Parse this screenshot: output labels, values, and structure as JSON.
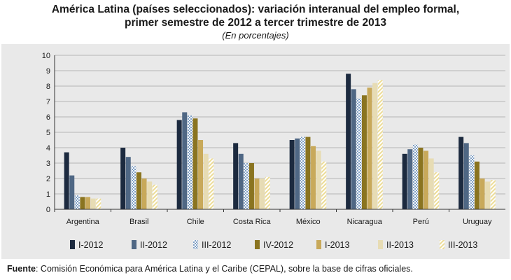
{
  "chart_data": {
    "type": "bar",
    "title_line1": "América Latina (países seleccionados): variación interanual del empleo formal,",
    "title_line2": "primer semestre de 2012 a tercer trimestre de 2013",
    "subtitle": "(En porcentajes)",
    "xlabel": "",
    "ylabel": "",
    "ylim": [
      0,
      10
    ],
    "yticks": [
      0,
      1,
      2,
      3,
      4,
      5,
      6,
      7,
      8,
      9,
      10
    ],
    "grid": true,
    "legend_position": "bottom",
    "categories": [
      "Argentina",
      "Brasil",
      "Chile",
      "Costa Rica",
      "México",
      "Nicaragua",
      "Perú",
      "Uruguay"
    ],
    "series": [
      {
        "name": "I-2012",
        "color": "#1c2a3f",
        "pattern": "solid",
        "values": [
          3.7,
          4.0,
          5.8,
          4.3,
          4.5,
          8.8,
          3.6,
          4.7
        ]
      },
      {
        "name": "II-2012",
        "color": "#4f6784",
        "pattern": "solid",
        "values": [
          2.2,
          3.4,
          6.3,
          3.6,
          4.6,
          7.8,
          3.9,
          4.3
        ]
      },
      {
        "name": "III-2012",
        "color": "#7f9fc4",
        "pattern": "checker",
        "values": [
          0.9,
          2.8,
          6.1,
          3.0,
          4.7,
          7.2,
          4.2,
          3.5
        ]
      },
      {
        "name": "IV-2012",
        "color": "#8a7420",
        "pattern": "solid",
        "values": [
          0.8,
          2.4,
          5.9,
          3.0,
          4.7,
          7.4,
          4.0,
          3.1
        ]
      },
      {
        "name": "I-2013",
        "color": "#c8a95a",
        "pattern": "solid",
        "values": [
          0.8,
          2.0,
          4.5,
          2.0,
          4.1,
          7.9,
          3.8,
          2.0
        ]
      },
      {
        "name": "II-2013",
        "color": "#e7dcb4",
        "pattern": "solid",
        "values": [
          0.7,
          1.8,
          3.6,
          2.0,
          3.8,
          8.2,
          3.3,
          1.8
        ]
      },
      {
        "name": "III-2013",
        "color": "#ecdc97",
        "pattern": "hatch",
        "values": [
          0.7,
          1.6,
          3.3,
          2.1,
          3.1,
          8.4,
          2.4,
          1.9
        ]
      }
    ]
  },
  "source": {
    "label": "Fuente",
    "text": ": Comisión Económica para América Latina y el Caribe (CEPAL), sobre la base de cifras oficiales."
  }
}
